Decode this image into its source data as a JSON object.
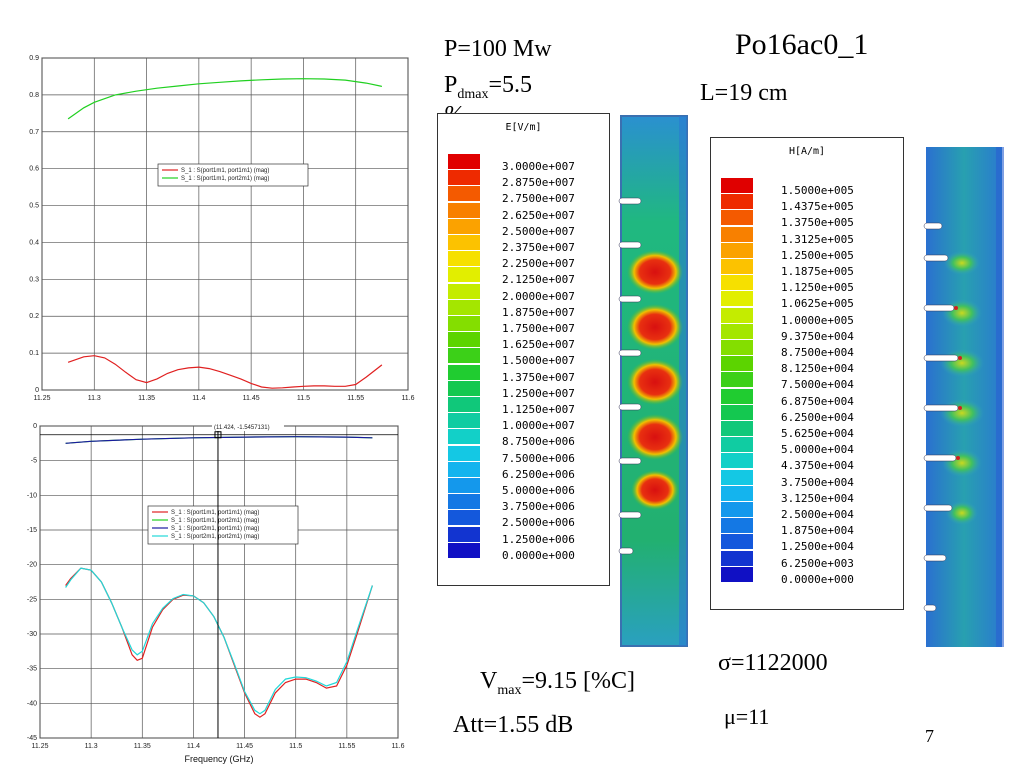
{
  "slide": {
    "title": "Po16ac0_1",
    "power": "P=100 Mw",
    "pdmax_prefix": "P",
    "pdmax_sub": "dmax",
    "pdmax_value": "=5.5",
    "pdmax_unit": "%",
    "length": "L=19 cm",
    "vmax_prefix": "V",
    "vmax_sub": "max",
    "vmax_value": "=9.15 [%C]",
    "att": "Att=1.55 dB",
    "sigma": "σ=1122000",
    "mu": "μ=11",
    "page_number": "7"
  },
  "chart_data": [
    {
      "type": "line",
      "title": "",
      "xlabel": "",
      "ylabel": "",
      "xlim": [
        11.25,
        11.6
      ],
      "ylim": [
        0,
        0.9
      ],
      "xticks": [
        "11.25",
        "11.3",
        "11.35",
        "11.4",
        "11.45",
        "11.5",
        "11.55",
        "11.6"
      ],
      "yticks": [
        "0",
        "0.1",
        "0.2",
        "0.3",
        "0.4",
        "0.5",
        "0.6",
        "0.7",
        "0.8",
        "0.9"
      ],
      "grid": true,
      "legend_position": "upper-middle",
      "series": [
        {
          "name": "S_1 : S(port1m1, port1m1) (mag)",
          "color": "#e02020",
          "x": [
            11.275,
            11.29,
            11.3,
            11.31,
            11.32,
            11.33,
            11.34,
            11.35,
            11.36,
            11.37,
            11.38,
            11.39,
            11.4,
            11.41,
            11.42,
            11.43,
            11.44,
            11.45,
            11.46,
            11.47,
            11.48,
            11.49,
            11.5,
            11.51,
            11.52,
            11.53,
            11.54,
            11.55,
            11.56,
            11.575
          ],
          "y": [
            0.075,
            0.09,
            0.093,
            0.087,
            0.07,
            0.048,
            0.028,
            0.02,
            0.03,
            0.045,
            0.055,
            0.06,
            0.062,
            0.058,
            0.05,
            0.04,
            0.03,
            0.018,
            0.008,
            0.005,
            0.006,
            0.008,
            0.01,
            0.011,
            0.011,
            0.01,
            0.01,
            0.015,
            0.035,
            0.068
          ]
        },
        {
          "name": "S_1 : S(port1m1, port2m1) (mag)",
          "color": "#20d020",
          "x": [
            11.275,
            11.29,
            11.3,
            11.32,
            11.34,
            11.36,
            11.38,
            11.4,
            11.42,
            11.44,
            11.46,
            11.48,
            11.5,
            11.52,
            11.54,
            11.56,
            11.575
          ],
          "y": [
            0.735,
            0.765,
            0.78,
            0.8,
            0.81,
            0.818,
            0.824,
            0.83,
            0.834,
            0.838,
            0.841,
            0.843,
            0.844,
            0.843,
            0.84,
            0.832,
            0.823
          ]
        }
      ]
    },
    {
      "type": "line",
      "title": "",
      "xlabel": "Frequency (GHz)",
      "ylabel": "",
      "xlim": [
        11.25,
        11.6
      ],
      "ylim": [
        -45,
        0
      ],
      "xticks": [
        "11.25",
        "11.3",
        "11.35",
        "11.4",
        "11.45",
        "11.5",
        "11.55",
        "11.6"
      ],
      "yticks": [
        "0",
        "-5",
        "-10",
        "-15",
        "-20",
        "-25",
        "-30",
        "-35",
        "-40",
        "-45"
      ],
      "grid": true,
      "legend_position": "middle",
      "marker_label": "(11.424, -1.5457131)",
      "marker_x": 11.424,
      "marker_y": -1.55,
      "series": [
        {
          "name": "S_1 : S(port1m1, port1m1) (mag)",
          "color": "#e02020",
          "x": [
            11.275,
            11.28,
            11.29,
            11.3,
            11.31,
            11.32,
            11.33,
            11.34,
            11.345,
            11.35,
            11.36,
            11.37,
            11.38,
            11.39,
            11.4,
            11.41,
            11.42,
            11.43,
            11.44,
            11.45,
            11.46,
            11.465,
            11.47,
            11.48,
            11.49,
            11.5,
            11.51,
            11.52,
            11.53,
            11.54,
            11.55,
            11.56,
            11.575
          ],
          "y": [
            -23,
            -22,
            -20.5,
            -20.8,
            -22.5,
            -25.5,
            -29,
            -33,
            -33.8,
            -33.5,
            -29,
            -26.5,
            -25,
            -24.4,
            -24.5,
            -25.5,
            -27.5,
            -30.5,
            -34.5,
            -38.5,
            -41.5,
            -42,
            -41.5,
            -38.5,
            -37,
            -36.5,
            -36.5,
            -37,
            -37.8,
            -37.5,
            -34.5,
            -30,
            -23
          ]
        },
        {
          "name": "S_1 : S(port1m1, port2m1) (mag)",
          "color": "#20d020",
          "x": [
            11.275,
            11.3,
            11.35,
            11.4,
            11.45,
            11.5,
            11.55,
            11.575
          ],
          "y": [
            -2.5,
            -2.2,
            -1.9,
            -1.7,
            -1.6,
            -1.55,
            -1.6,
            -1.7
          ]
        },
        {
          "name": "S_1 : S(port2m1, port1m1) (mag)",
          "color": "#1a1aa0",
          "x": [
            11.275,
            11.3,
            11.35,
            11.4,
            11.45,
            11.5,
            11.55,
            11.575
          ],
          "y": [
            -2.5,
            -2.2,
            -1.9,
            -1.7,
            -1.6,
            -1.55,
            -1.6,
            -1.7
          ]
        },
        {
          "name": "S_1 : S(port2m1, port2m1) (mag)",
          "color": "#20d8d8",
          "x": [
            11.275,
            11.28,
            11.29,
            11.3,
            11.31,
            11.32,
            11.33,
            11.34,
            11.345,
            11.35,
            11.36,
            11.37,
            11.38,
            11.39,
            11.4,
            11.41,
            11.42,
            11.43,
            11.44,
            11.45,
            11.46,
            11.465,
            11.47,
            11.48,
            11.49,
            11.5,
            11.51,
            11.52,
            11.53,
            11.54,
            11.55,
            11.56,
            11.575
          ],
          "y": [
            -23.3,
            -22.2,
            -20.5,
            -20.8,
            -22.5,
            -25.5,
            -29,
            -32.3,
            -33,
            -32.5,
            -28.5,
            -26.3,
            -24.9,
            -24.3,
            -24.5,
            -25.5,
            -27.5,
            -30.5,
            -34.3,
            -38.3,
            -41,
            -41.5,
            -41,
            -38,
            -36.5,
            -36.2,
            -36.3,
            -36.8,
            -37.5,
            -37,
            -34,
            -29.5,
            -23
          ]
        }
      ]
    }
  ],
  "e_colorbar": {
    "title": "E[V/m]",
    "values": [
      "3.0000e+007",
      "2.8750e+007",
      "2.7500e+007",
      "2.6250e+007",
      "2.5000e+007",
      "2.3750e+007",
      "2.2500e+007",
      "2.1250e+007",
      "2.0000e+007",
      "1.8750e+007",
      "1.7500e+007",
      "1.6250e+007",
      "1.5000e+007",
      "1.3750e+007",
      "1.2500e+007",
      "1.1250e+007",
      "1.0000e+007",
      "8.7500e+006",
      "7.5000e+006",
      "6.2500e+006",
      "5.0000e+006",
      "3.7500e+006",
      "2.5000e+006",
      "1.2500e+006",
      "0.0000e+000"
    ],
    "colors": [
      "#e00000",
      "#ee2a00",
      "#f45a00",
      "#f88000",
      "#fba200",
      "#fcc200",
      "#f6e000",
      "#e2ee00",
      "#c4ec00",
      "#a4e600",
      "#84de00",
      "#5cd400",
      "#3cd018",
      "#20cc30",
      "#14c850",
      "#10c87a",
      "#10cca2",
      "#12d0c8",
      "#14c8e4",
      "#14b4ee",
      "#1498ec",
      "#1478e4",
      "#1458dc",
      "#1234d0",
      "#1010c4"
    ]
  },
  "h_colorbar": {
    "title": "H[A/m]",
    "values": [
      "1.5000e+005",
      "1.4375e+005",
      "1.3750e+005",
      "1.3125e+005",
      "1.2500e+005",
      "1.1875e+005",
      "1.1250e+005",
      "1.0625e+005",
      "1.0000e+005",
      "9.3750e+004",
      "8.7500e+004",
      "8.1250e+004",
      "7.5000e+004",
      "6.8750e+004",
      "6.2500e+004",
      "5.6250e+004",
      "5.0000e+004",
      "4.3750e+004",
      "3.7500e+004",
      "3.1250e+004",
      "2.5000e+004",
      "1.8750e+004",
      "1.2500e+004",
      "6.2500e+003",
      "0.0000e+000"
    ],
    "colors": [
      "#e00000",
      "#ee2a00",
      "#f45a00",
      "#f88000",
      "#fba200",
      "#fcc200",
      "#f6e000",
      "#e2ee00",
      "#c4ec00",
      "#a4e600",
      "#84de00",
      "#5cd400",
      "#3cd018",
      "#20cc30",
      "#14c850",
      "#10c87a",
      "#10cca2",
      "#12d0c8",
      "#14c8e4",
      "#14b4ee",
      "#1498ec",
      "#1478e4",
      "#1458dc",
      "#1234d0",
      "#1010c4"
    ]
  }
}
